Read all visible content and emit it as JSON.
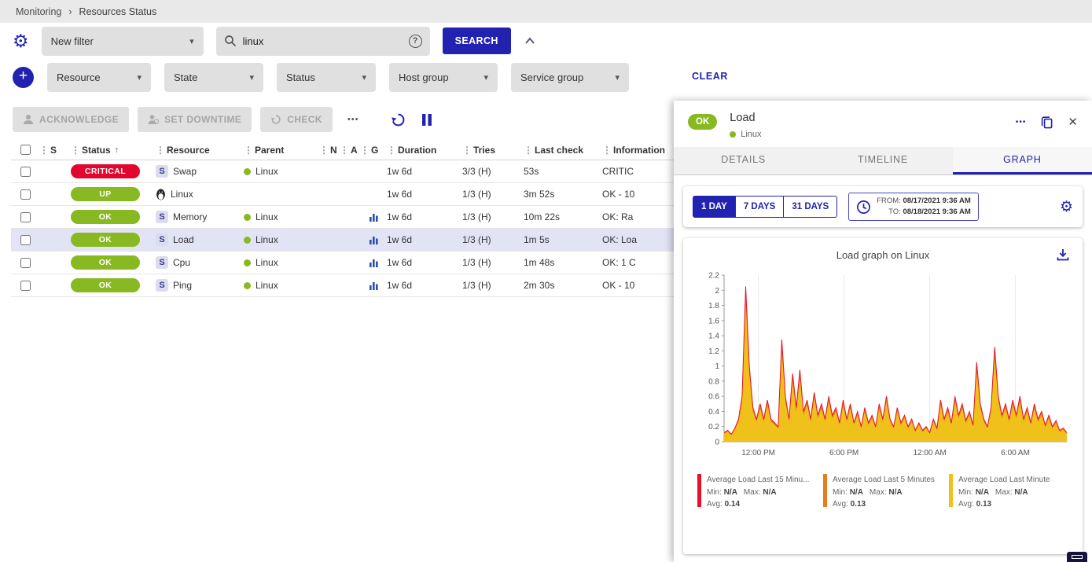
{
  "breadcrumb": {
    "items": [
      "Monitoring",
      "Resources Status"
    ],
    "separator": "›"
  },
  "icons": {
    "drag": "⋮",
    "caret": "▾",
    "sort_asc": "↑",
    "more": "•••",
    "plus": "+",
    "close": "✕",
    "help": "?",
    "gear": "⚙"
  },
  "filters": {
    "saved_filter": {
      "value": "New filter"
    },
    "search": {
      "value": "linux"
    },
    "search_button": "SEARCH",
    "clear_button": "CLEAR",
    "criteria": [
      {
        "label": "Resource"
      },
      {
        "label": "State"
      },
      {
        "label": "Status"
      },
      {
        "label": "Host group"
      },
      {
        "label": "Service group"
      }
    ]
  },
  "toolbar": {
    "acknowledge": "ACKNOWLEDGE",
    "set_downtime": "SET DOWNTIME",
    "check": "CHECK"
  },
  "table": {
    "columns": [
      "S",
      "Status",
      "Resource",
      "Parent",
      "N",
      "A",
      "G",
      "Duration",
      "Tries",
      "Last check",
      "Information"
    ],
    "service_badge": "S",
    "rows": [
      {
        "status": "CRITICAL",
        "kind": "service",
        "resource": "Swap",
        "parent": "Linux",
        "graph": false,
        "duration": "1w 6d",
        "tries": "3/3 (H)",
        "last_check": "53s",
        "info": "CRITIC"
      },
      {
        "status": "UP",
        "kind": "host",
        "resource": "Linux",
        "parent": "",
        "graph": false,
        "duration": "1w 6d",
        "tries": "1/3 (H)",
        "last_check": "3m 52s",
        "info": "OK - 10"
      },
      {
        "status": "OK",
        "kind": "service",
        "resource": "Memory",
        "parent": "Linux",
        "graph": true,
        "duration": "1w 6d",
        "tries": "1/3 (H)",
        "last_check": "10m 22s",
        "info": "OK: Ra"
      },
      {
        "status": "OK",
        "kind": "service",
        "resource": "Load",
        "parent": "Linux",
        "graph": true,
        "duration": "1w 6d",
        "tries": "1/3 (H)",
        "last_check": "1m 5s",
        "info": "OK: Loa"
      },
      {
        "status": "OK",
        "kind": "service",
        "resource": "Cpu",
        "parent": "Linux",
        "graph": true,
        "duration": "1w 6d",
        "tries": "1/3 (H)",
        "last_check": "1m 48s",
        "info": "OK: 1 C"
      },
      {
        "status": "OK",
        "kind": "service",
        "resource": "Ping",
        "parent": "Linux",
        "graph": true,
        "duration": "1w 6d",
        "tries": "1/3 (H)",
        "last_check": "2m 30s",
        "info": "OK - 10"
      }
    ]
  },
  "panel": {
    "status": "OK",
    "title": "Load",
    "subtitle": "Linux",
    "tabs": [
      "DETAILS",
      "TIMELINE",
      "GRAPH"
    ],
    "active_tab": "GRAPH",
    "ranges": [
      "1 DAY",
      "7 DAYS",
      "31 DAYS"
    ],
    "active_range": "1 DAY",
    "from_label": "FROM:",
    "from_value": "08/17/2021 9:36 AM",
    "to_label": "TO:",
    "to_value": "08/18/2021 9:36 AM"
  },
  "colors": {
    "accent": "#2222b0",
    "critical": "#e2062f",
    "ok_green": "#88b922",
    "selected_row": "#e3e3f6"
  },
  "chart_data": {
    "type": "area",
    "title": "Load graph on Linux",
    "x_range": [
      "08/17/2021 9:36 AM",
      "08/18/2021 9:36 AM"
    ],
    "x_ticks": [
      "12:00 PM",
      "6:00 PM",
      "12:00 AM",
      "6:00 AM"
    ],
    "x_tick_pos": [
      0.1,
      0.35,
      0.6,
      0.85
    ],
    "y_ticks": [
      0,
      0.2,
      0.4,
      0.6,
      0.8,
      1,
      1.2,
      1.4,
      1.6,
      1.8,
      2,
      2.2
    ],
    "ylim": [
      0,
      2.2
    ],
    "grid": "vertical",
    "legend_labels": {
      "min": "Min:",
      "max": "Max:",
      "avg": "Avg:"
    },
    "series": [
      {
        "name": "Average Load Last 15 Minu...",
        "color": "#e8132a",
        "style": "line",
        "min": "N/A",
        "max": "N/A",
        "avg": "0.14"
      },
      {
        "name": "Average Load Last 5 Minutes",
        "color": "#e87d1e",
        "style": "area",
        "min": "N/A",
        "max": "N/A",
        "avg": "0.13"
      },
      {
        "name": "Average Load Last Minute",
        "color": "#f0c11a",
        "style": "area",
        "min": "N/A",
        "max": "N/A",
        "avg": "0.13"
      }
    ],
    "values": [
      0.12,
      0.15,
      0.1,
      0.18,
      0.3,
      0.6,
      2.05,
      1.0,
      0.45,
      0.3,
      0.5,
      0.3,
      0.55,
      0.3,
      0.25,
      0.2,
      1.35,
      0.6,
      0.3,
      0.9,
      0.45,
      0.95,
      0.4,
      0.55,
      0.3,
      0.65,
      0.35,
      0.5,
      0.3,
      0.6,
      0.35,
      0.45,
      0.25,
      0.55,
      0.3,
      0.5,
      0.25,
      0.4,
      0.2,
      0.45,
      0.25,
      0.35,
      0.2,
      0.5,
      0.3,
      0.6,
      0.3,
      0.2,
      0.45,
      0.25,
      0.35,
      0.2,
      0.3,
      0.15,
      0.25,
      0.15,
      0.2,
      0.12,
      0.3,
      0.18,
      0.55,
      0.3,
      0.45,
      0.25,
      0.6,
      0.35,
      0.5,
      0.28,
      0.4,
      0.22,
      1.05,
      0.5,
      0.3,
      0.2,
      0.45,
      1.25,
      0.6,
      0.35,
      0.5,
      0.3,
      0.55,
      0.35,
      0.6,
      0.3,
      0.45,
      0.25,
      0.5,
      0.3,
      0.4,
      0.22,
      0.35,
      0.2,
      0.28,
      0.15,
      0.18,
      0.12
    ]
  }
}
